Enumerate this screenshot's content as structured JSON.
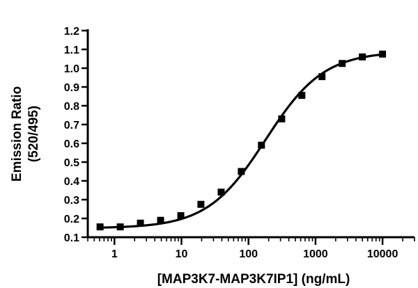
{
  "chart_data": {
    "type": "scatter",
    "title": "",
    "xlabel": "[MAP3K7-MAP3K7IP1] (ng/mL)",
    "ylabel": [
      "Emission Ratio",
      "(520/495)"
    ],
    "x_scale": "log",
    "xlim": [
      0.4,
      30000
    ],
    "ylim": [
      0.1,
      1.2
    ],
    "grid": false,
    "legend": "none",
    "x_ticks": [
      1,
      10,
      100,
      1000,
      10000
    ],
    "x_tick_labels": [
      "1",
      "10",
      "100",
      "1000",
      "10000"
    ],
    "y_ticks": [
      0.1,
      0.2,
      0.3,
      0.4,
      0.5,
      0.6,
      0.7,
      0.8,
      0.9,
      1.0,
      1.1,
      1.2
    ],
    "y_tick_labels": [
      "0.1",
      "0.2",
      "0.3",
      "0.4",
      "0.5",
      "0.6",
      "0.7",
      "0.8",
      "0.9",
      "1.0",
      "1.1",
      "1.2"
    ],
    "series": [
      {
        "marker": "square",
        "color": "#000000",
        "x": [
          0.61,
          1.22,
          2.44,
          4.88,
          9.77,
          19.5,
          39.1,
          78.1,
          156,
          313,
          625,
          1250,
          2500,
          5000,
          10000
        ],
        "y": [
          0.155,
          0.155,
          0.175,
          0.19,
          0.215,
          0.275,
          0.34,
          0.45,
          0.59,
          0.73,
          0.855,
          0.955,
          1.025,
          1.06,
          1.075
        ]
      }
    ],
    "fit_curve": {
      "model": "4PL",
      "bottom": 0.148,
      "top": 1.09,
      "ec50": 180,
      "hill": 1.0,
      "color": "#000000"
    }
  }
}
